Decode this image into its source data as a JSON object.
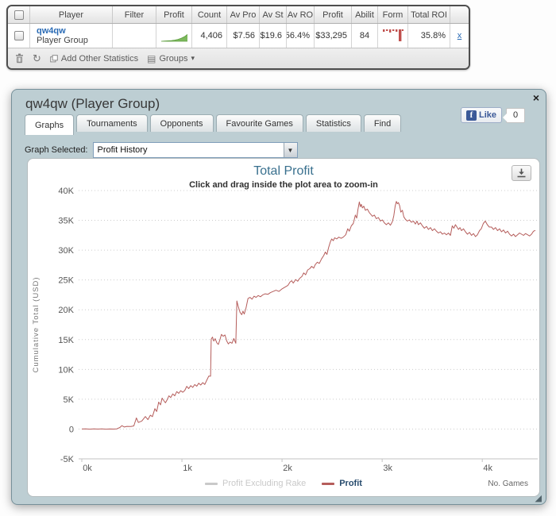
{
  "colors": {
    "line": "#b55d5b",
    "spark_green_fill": "#7cb85c",
    "spark_green_stroke": "#5d9e3f",
    "form_red": "#c0504d",
    "fb_blue": "#3b5998",
    "title_blue": "#39708e",
    "legend_disabled": "#c9c9c9",
    "legend_enabled_text": "#274b6d"
  },
  "table": {
    "columns": [
      "",
      "Player",
      "Filter",
      "Profit",
      "Count",
      "Av Pro",
      "Av St",
      "Av RO",
      "Profit",
      "Abilit",
      "Form",
      "Total ROI",
      ""
    ],
    "row": {
      "player_name": "qw4qw",
      "player_sub": "Player Group",
      "count": "4,406",
      "av_pro": "$7.56",
      "av_st": "$19.6",
      "av_ro": "56.4%",
      "profit": "$33,295",
      "ability": "84",
      "total_roi": "35.8%",
      "remove_label": "x",
      "profit_spark": [
        0,
        0.3,
        0.6,
        1,
        1.6,
        2.6,
        4.2,
        6.5,
        10,
        14
      ],
      "form_spark": [
        3,
        2,
        4,
        2,
        3,
        15,
        2,
        11
      ]
    },
    "toolbar": {
      "refresh_icon": "↻",
      "groups_icon": "▤",
      "caret_icon": "▾",
      "add_other_statistics_label": "Add Other Statistics",
      "groups_label": "Groups"
    }
  },
  "popup": {
    "title": "qw4qw (Player Group)",
    "close_label": "×",
    "resize_glyph": "◢",
    "like": {
      "f": "f",
      "label": "Like",
      "count": "0"
    },
    "tabs": [
      {
        "label": "Graphs",
        "active": true
      },
      {
        "label": "Tournaments",
        "active": false
      },
      {
        "label": "Opponents",
        "active": false
      },
      {
        "label": "Favourite Games",
        "active": false
      },
      {
        "label": "Statistics",
        "active": false
      },
      {
        "label": "Find",
        "active": false
      }
    ],
    "graph_selected_label": "Graph Selected:",
    "graph_selected_value": "Profit History",
    "select_arrow": "▼"
  },
  "chart_data": {
    "type": "line",
    "title": "Total Profit",
    "subtitle": "Click and drag inside the plot area to zoom-in",
    "ylabel": "Cumulative Total (USD)",
    "xlabel": "No. Games",
    "xlim": [
      0,
      4530
    ],
    "ylim": [
      -5000,
      40000
    ],
    "grid": "dotted",
    "legend_position": "bottom",
    "yticks": [
      {
        "label": "40K",
        "value": 40000
      },
      {
        "label": "35K",
        "value": 35000
      },
      {
        "label": "30K",
        "value": 30000
      },
      {
        "label": "25K",
        "value": 25000
      },
      {
        "label": "20K",
        "value": 20000
      },
      {
        "label": "15K",
        "value": 15000
      },
      {
        "label": "10K",
        "value": 10000
      },
      {
        "label": "5K",
        "value": 5000
      },
      {
        "label": "0",
        "value": 0
      },
      {
        "label": "-5K",
        "value": -5000
      }
    ],
    "xticks": [
      {
        "label": "0k",
        "value": 0
      },
      {
        "label": "1k",
        "value": 1000
      },
      {
        "label": "2k",
        "value": 2000
      },
      {
        "label": "3k",
        "value": 3000
      },
      {
        "label": "4k",
        "value": 4000
      }
    ],
    "legend": [
      {
        "name": "Profit Excluding Rake",
        "color": "#c9c9c9",
        "enabled": false
      },
      {
        "name": "Profit",
        "color": "#b55d5b",
        "enabled": true
      }
    ],
    "series": [
      {
        "name": "Profit",
        "color": "#b55d5b",
        "points": [
          [
            0,
            0
          ],
          [
            40,
            20
          ],
          [
            80,
            -20
          ],
          [
            120,
            30
          ],
          [
            160,
            -10
          ],
          [
            200,
            20
          ],
          [
            240,
            -20
          ],
          [
            280,
            10
          ],
          [
            320,
            -10
          ],
          [
            350,
            30
          ],
          [
            380,
            260
          ],
          [
            400,
            560
          ],
          [
            425,
            340
          ],
          [
            450,
            450
          ],
          [
            490,
            420
          ],
          [
            520,
            520
          ],
          [
            545,
            1850
          ],
          [
            565,
            1100
          ],
          [
            600,
            1350
          ],
          [
            635,
            2100
          ],
          [
            660,
            1580
          ],
          [
            685,
            2320
          ],
          [
            705,
            2080
          ],
          [
            730,
            3420
          ],
          [
            748,
            2950
          ],
          [
            768,
            4520
          ],
          [
            786,
            4050
          ],
          [
            802,
            5180
          ],
          [
            818,
            4780
          ],
          [
            835,
            4400
          ],
          [
            852,
            4900
          ],
          [
            870,
            5570
          ],
          [
            888,
            5280
          ],
          [
            908,
            5890
          ],
          [
            928,
            5570
          ],
          [
            948,
            6280
          ],
          [
            968,
            5980
          ],
          [
            988,
            6420
          ],
          [
            1008,
            6170
          ],
          [
            1028,
            6460
          ],
          [
            1048,
            7160
          ],
          [
            1068,
            6780
          ],
          [
            1088,
            7280
          ],
          [
            1108,
            6980
          ],
          [
            1128,
            7460
          ],
          [
            1148,
            7180
          ],
          [
            1168,
            7690
          ],
          [
            1188,
            7380
          ],
          [
            1208,
            7780
          ],
          [
            1228,
            7480
          ],
          [
            1248,
            8180
          ],
          [
            1268,
            8870
          ],
          [
            1286,
            8860
          ],
          [
            1292,
            15080
          ],
          [
            1305,
            15420
          ],
          [
            1318,
            14760
          ],
          [
            1332,
            15160
          ],
          [
            1348,
            14480
          ],
          [
            1364,
            14180
          ],
          [
            1380,
            14980
          ],
          [
            1395,
            15880
          ],
          [
            1412,
            15560
          ],
          [
            1430,
            15780
          ],
          [
            1448,
            14760
          ],
          [
            1464,
            14280
          ],
          [
            1480,
            14580
          ],
          [
            1500,
            14380
          ],
          [
            1518,
            15180
          ],
          [
            1538,
            14380
          ],
          [
            1549,
            21480
          ],
          [
            1562,
            20580
          ],
          [
            1580,
            19580
          ],
          [
            1598,
            19180
          ],
          [
            1610,
            19780
          ],
          [
            1622,
            19280
          ],
          [
            1640,
            20280
          ],
          [
            1660,
            21880
          ],
          [
            1680,
            22080
          ],
          [
            1700,
            21780
          ],
          [
            1720,
            22280
          ],
          [
            1740,
            22080
          ],
          [
            1762,
            22380
          ],
          [
            1784,
            22180
          ],
          [
            1806,
            22480
          ],
          [
            1832,
            22680
          ],
          [
            1858,
            22580
          ],
          [
            1884,
            22880
          ],
          [
            1912,
            23080
          ],
          [
            1940,
            23280
          ],
          [
            1968,
            23080
          ],
          [
            1998,
            23480
          ],
          [
            2028,
            23780
          ],
          [
            2058,
            24080
          ],
          [
            2080,
            24680
          ],
          [
            2096,
            24880
          ],
          [
            2112,
            24480
          ],
          [
            2136,
            25080
          ],
          [
            2156,
            24780
          ],
          [
            2176,
            25280
          ],
          [
            2198,
            25580
          ],
          [
            2216,
            26180
          ],
          [
            2236,
            25880
          ],
          [
            2256,
            26680
          ],
          [
            2276,
            26880
          ],
          [
            2296,
            27280
          ],
          [
            2316,
            26980
          ],
          [
            2332,
            27580
          ],
          [
            2352,
            27980
          ],
          [
            2372,
            27780
          ],
          [
            2396,
            28580
          ],
          [
            2416,
            29080
          ],
          [
            2432,
            29680
          ],
          [
            2448,
            29280
          ],
          [
            2466,
            30480
          ],
          [
            2482,
            31380
          ],
          [
            2496,
            31880
          ],
          [
            2512,
            31580
          ],
          [
            2526,
            32080
          ],
          [
            2546,
            31880
          ],
          [
            2566,
            32180
          ],
          [
            2590,
            31980
          ],
          [
            2612,
            32180
          ],
          [
            2636,
            32580
          ],
          [
            2656,
            33580
          ],
          [
            2672,
            33180
          ],
          [
            2692,
            34080
          ],
          [
            2712,
            34480
          ],
          [
            2732,
            35880
          ],
          [
            2746,
            35380
          ],
          [
            2758,
            36780
          ],
          [
            2772,
            38080
          ],
          [
            2782,
            37280
          ],
          [
            2792,
            37680
          ],
          [
            2802,
            37080
          ],
          [
            2816,
            37380
          ],
          [
            2832,
            36680
          ],
          [
            2852,
            36880
          ],
          [
            2872,
            36280
          ],
          [
            2888,
            35980
          ],
          [
            2902,
            35680
          ],
          [
            2922,
            35880
          ],
          [
            2942,
            35280
          ],
          [
            2962,
            35480
          ],
          [
            2982,
            34880
          ],
          [
            3002,
            35080
          ],
          [
            3022,
            34580
          ],
          [
            3042,
            34280
          ],
          [
            3062,
            34580
          ],
          [
            3082,
            34180
          ],
          [
            3102,
            34780
          ],
          [
            3116,
            35780
          ],
          [
            3130,
            37380
          ],
          [
            3142,
            38180
          ],
          [
            3152,
            37780
          ],
          [
            3162,
            37980
          ],
          [
            3174,
            37480
          ],
          [
            3186,
            36380
          ],
          [
            3202,
            36680
          ],
          [
            3216,
            35580
          ],
          [
            3232,
            35180
          ],
          [
            3252,
            34880
          ],
          [
            3272,
            35080
          ],
          [
            3292,
            34680
          ],
          [
            3312,
            34880
          ],
          [
            3332,
            34380
          ],
          [
            3347,
            34880
          ],
          [
            3362,
            34280
          ],
          [
            3382,
            34580
          ],
          [
            3402,
            34080
          ],
          [
            3422,
            33680
          ],
          [
            3442,
            33980
          ],
          [
            3462,
            33480
          ],
          [
            3482,
            33780
          ],
          [
            3502,
            33280
          ],
          [
            3522,
            33580
          ],
          [
            3542,
            33180
          ],
          [
            3562,
            32880
          ],
          [
            3582,
            33080
          ],
          [
            3602,
            32680
          ],
          [
            3622,
            32880
          ],
          [
            3642,
            32580
          ],
          [
            3662,
            32880
          ],
          [
            3682,
            32480
          ],
          [
            3700,
            34080
          ],
          [
            3716,
            33680
          ],
          [
            3732,
            34280
          ],
          [
            3747,
            33880
          ],
          [
            3762,
            33480
          ],
          [
            3777,
            33780
          ],
          [
            3792,
            33280
          ],
          [
            3812,
            33580
          ],
          [
            3832,
            33080
          ],
          [
            3852,
            32680
          ],
          [
            3872,
            32980
          ],
          [
            3892,
            32480
          ],
          [
            3912,
            32780
          ],
          [
            3932,
            32280
          ],
          [
            3952,
            32580
          ],
          [
            3972,
            33280
          ],
          [
            3990,
            33580
          ],
          [
            4010,
            34480
          ],
          [
            4030,
            34880
          ],
          [
            4050,
            34280
          ],
          [
            4070,
            33880
          ],
          [
            4092,
            33880
          ],
          [
            4112,
            33480
          ],
          [
            4132,
            33780
          ],
          [
            4152,
            33280
          ],
          [
            4172,
            33580
          ],
          [
            4192,
            33080
          ],
          [
            4212,
            33380
          ],
          [
            4232,
            32880
          ],
          [
            4252,
            33180
          ],
          [
            4272,
            32680
          ],
          [
            4292,
            32380
          ],
          [
            4312,
            32680
          ],
          [
            4332,
            32280
          ],
          [
            4352,
            32580
          ],
          [
            4372,
            32880
          ],
          [
            4392,
            32680
          ],
          [
            4412,
            32480
          ],
          [
            4432,
            32780
          ],
          [
            4452,
            32580
          ],
          [
            4472,
            32380
          ],
          [
            4492,
            32680
          ],
          [
            4512,
            33180
          ],
          [
            4530,
            33295
          ]
        ]
      }
    ]
  }
}
